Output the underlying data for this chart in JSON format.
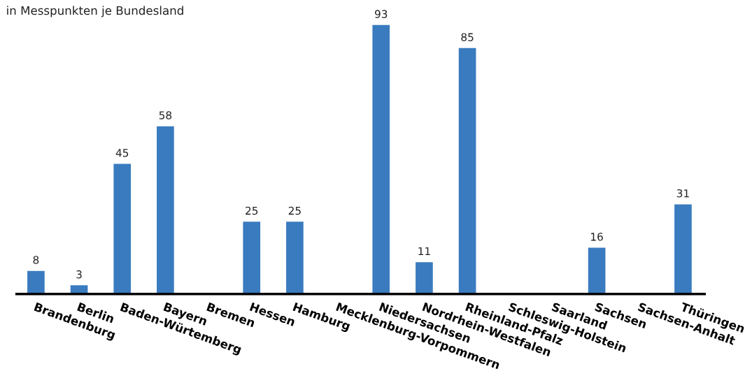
{
  "chart_data": {
    "type": "bar",
    "subtitle": "in Messpunkten je Bundesland",
    "categories": [
      "Brandenburg",
      "Berlin",
      "Baden-Würtemberg",
      "Bayern",
      "Bremen",
      "Hessen",
      "Hamburg",
      "Mecklenburg-Vorpommern",
      "Niedersachsen",
      "Nordrhein-Westfalen",
      "Rheinland-Pfalz",
      "Schleswig-Holstein",
      "Saarland",
      "Sachsen",
      "Sachsen-Anhalt",
      "Thüringen"
    ],
    "values": [
      8,
      3,
      45,
      58,
      null,
      25,
      25,
      null,
      93,
      11,
      85,
      null,
      null,
      16,
      null,
      31
    ],
    "color": "#3a7bbf",
    "data_labels": true,
    "grid": false,
    "legend": false
  }
}
